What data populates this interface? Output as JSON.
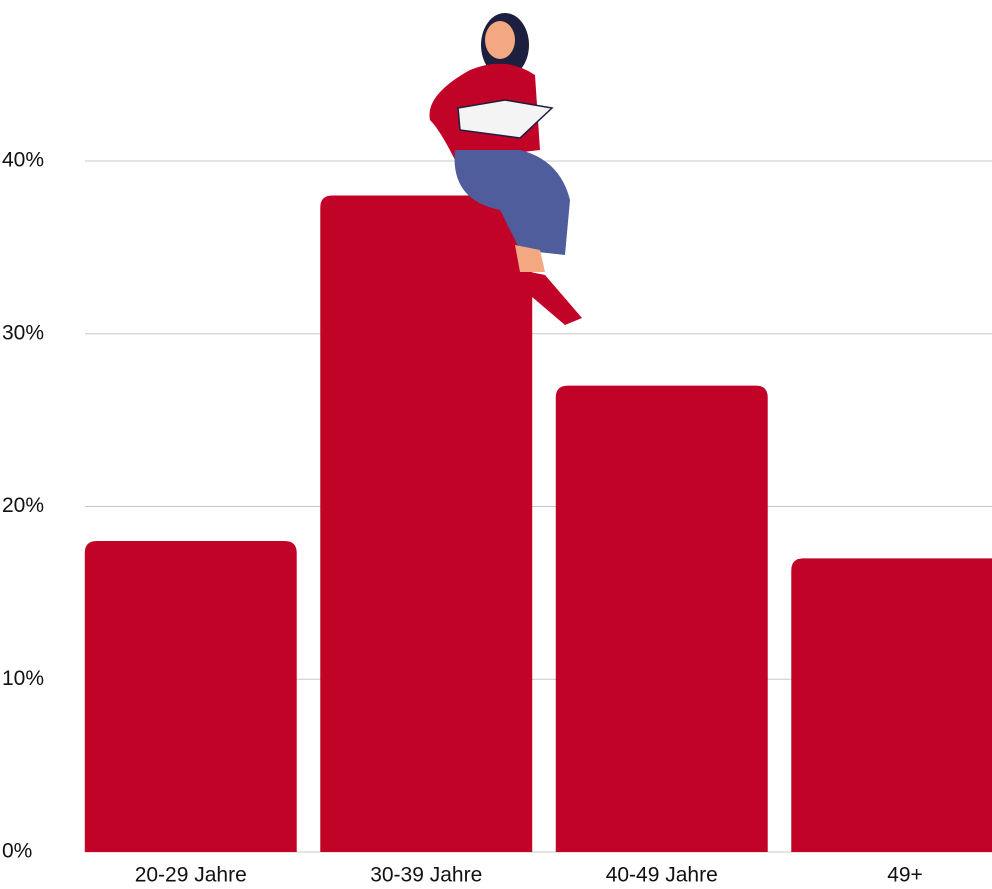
{
  "chart_data": {
    "type": "bar",
    "categories": [
      "20-29 Jahre",
      "30-39 Jahre",
      "40-49 Jahre",
      "49+"
    ],
    "values": [
      18,
      38,
      27,
      17
    ],
    "color": "#c00326",
    "ylim": [
      0,
      40
    ],
    "yticks": [
      {
        "value": 0,
        "label": "0%"
      },
      {
        "value": 10,
        "label": "10%"
      },
      {
        "value": 20,
        "label": "20%"
      },
      {
        "value": 30,
        "label": "30%"
      },
      {
        "value": 40,
        "label": "40%"
      }
    ],
    "grid": true
  }
}
